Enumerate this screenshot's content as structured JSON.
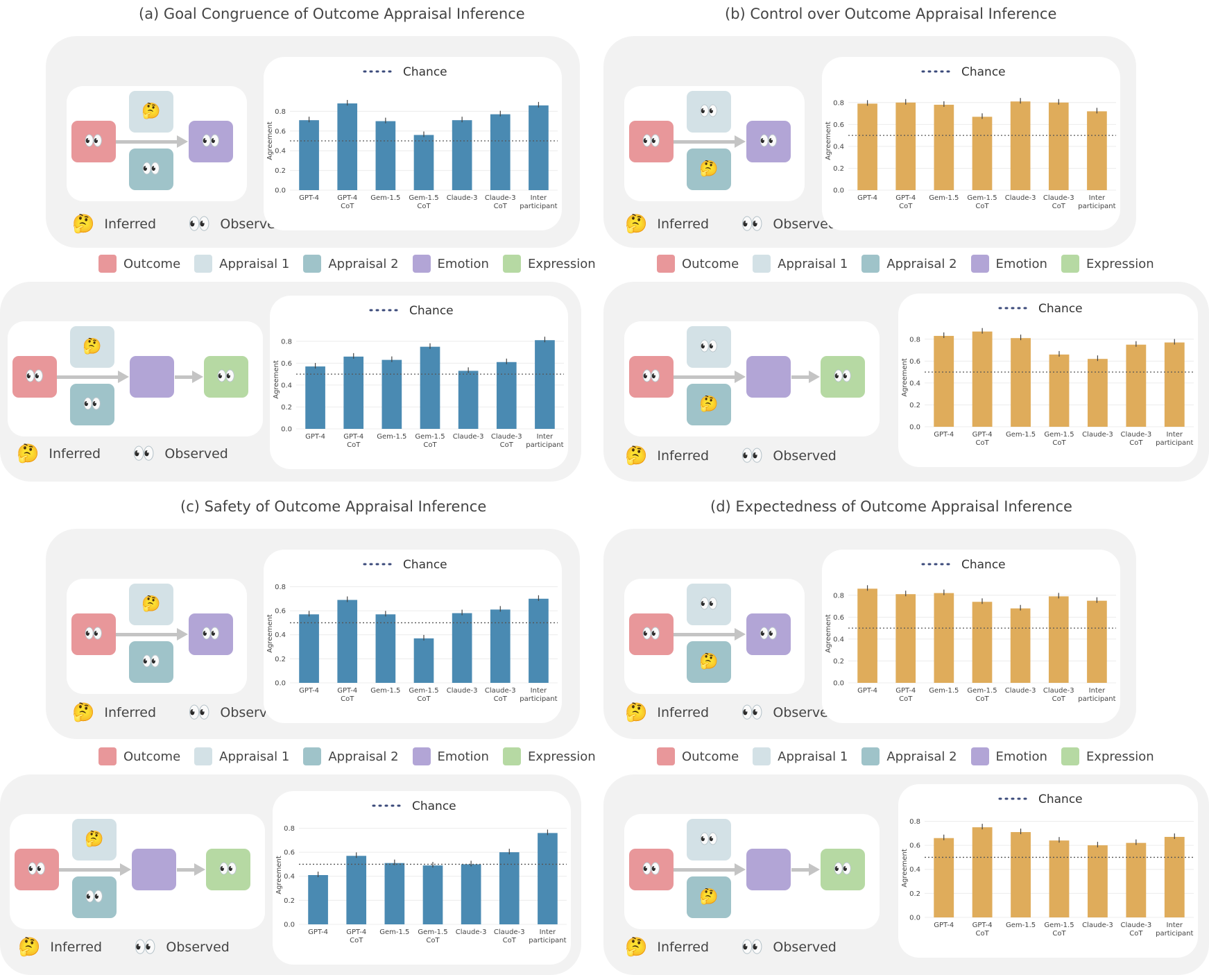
{
  "titles": {
    "a": "(a) Goal Congruence of Outcome Appraisal Inference",
    "b": "(b) Control over Outcome Appraisal Inference",
    "c": "(c) Safety of Outcome Appraisal Inference",
    "d": "(d) Expectedness of Outcome Appraisal  Inference"
  },
  "key": {
    "inferred": "Inferred",
    "observed": "Observed"
  },
  "legend": [
    {
      "label": "Outcome",
      "color": "#e8979a"
    },
    {
      "label": "Appraisal 1",
      "color": "#d3e1e6"
    },
    {
      "label": "Appraisal 2",
      "color": "#9fc3c9"
    },
    {
      "label": "Emotion",
      "color": "#b2a5d6"
    },
    {
      "label": "Expression",
      "color": "#b6d9a3"
    }
  ],
  "colors": {
    "blue": "#4a8ab2",
    "gold": "#dfac5b",
    "outcome": "#e8979a",
    "appraisal1": "#d3e1e6",
    "appraisal2": "#9fc3c9",
    "emotion": "#b2a5d6",
    "expression": "#b6d9a3"
  },
  "chart_data": [
    {
      "id": "a1",
      "type": "bar",
      "title": "",
      "legend_label": "Chance",
      "ylabel": "Agreement",
      "ylim": [
        0,
        1.0
      ],
      "yticks": [
        "0.0",
        "0.2",
        "0.4",
        "0.6",
        "0.8"
      ],
      "chance": 0.5,
      "categories": [
        [
          "GPT-4"
        ],
        [
          "GPT-4",
          "CoT"
        ],
        [
          "Gem-1.5"
        ],
        [
          "Gem-1.5",
          "CoT"
        ],
        [
          "Claude-3"
        ],
        [
          "Claude-3",
          "CoT"
        ],
        [
          "Inter",
          "participant"
        ]
      ],
      "values": [
        0.71,
        0.88,
        0.7,
        0.56,
        0.71,
        0.77,
        0.86
      ]
    },
    {
      "id": "a2",
      "type": "bar",
      "title": "",
      "legend_label": "Chance",
      "ylabel": "Agreement",
      "ylim": [
        0,
        0.9
      ],
      "yticks": [
        "0.0",
        "0.2",
        "0.4",
        "0.6",
        "0.8"
      ],
      "chance": 0.5,
      "categories": [
        [
          "GPT-4"
        ],
        [
          "GPT-4",
          "CoT"
        ],
        [
          "Gem-1.5"
        ],
        [
          "Gem-1.5",
          "CoT"
        ],
        [
          "Claude-3"
        ],
        [
          "Claude-3",
          "CoT"
        ],
        [
          "Inter",
          "participant"
        ]
      ],
      "values": [
        0.57,
        0.66,
        0.63,
        0.75,
        0.53,
        0.61,
        0.81
      ]
    },
    {
      "id": "b1",
      "type": "bar",
      "title": "",
      "legend_label": "Chance",
      "ylabel": "Agreement",
      "ylim": [
        0,
        0.9
      ],
      "yticks": [
        "0.0",
        "0.2",
        "0.4",
        "0.6",
        "0.8"
      ],
      "chance": 0.5,
      "categories": [
        [
          "GPT-4"
        ],
        [
          "GPT-4",
          "CoT"
        ],
        [
          "Gem-1.5"
        ],
        [
          "Gem-1.5",
          "CoT"
        ],
        [
          "Claude-3"
        ],
        [
          "Claude-3",
          "CoT"
        ],
        [
          "Inter",
          "participant"
        ]
      ],
      "values": [
        0.79,
        0.8,
        0.78,
        0.67,
        0.81,
        0.8,
        0.72
      ]
    },
    {
      "id": "b2",
      "type": "bar",
      "title": "",
      "legend_label": "Chance",
      "ylabel": "Agreement",
      "ylim": [
        0,
        0.9
      ],
      "yticks": [
        "0.0",
        "0.2",
        "0.4",
        "0.6",
        "0.8"
      ],
      "chance": 0.5,
      "categories": [
        [
          "GPT-4"
        ],
        [
          "GPT-4",
          "CoT"
        ],
        [
          "Gem-1.5"
        ],
        [
          "Gem-1.5",
          "CoT"
        ],
        [
          "Claude-3"
        ],
        [
          "Claude-3",
          "CoT"
        ],
        [
          "Inter",
          "participant"
        ]
      ],
      "values": [
        0.83,
        0.87,
        0.81,
        0.66,
        0.62,
        0.75,
        0.77
      ]
    },
    {
      "id": "c1",
      "type": "bar",
      "title": "",
      "legend_label": "Chance",
      "ylabel": "Agreement",
      "ylim": [
        0,
        0.82
      ],
      "yticks": [
        "0.0",
        "0.2",
        "0.4",
        "0.6",
        "0.8"
      ],
      "chance": 0.5,
      "categories": [
        [
          "GPT-4"
        ],
        [
          "GPT-4",
          "CoT"
        ],
        [
          "Gem-1.5"
        ],
        [
          "Gem-1.5",
          "CoT"
        ],
        [
          "Claude-3"
        ],
        [
          "Claude-3",
          "CoT"
        ],
        [
          "Inter",
          "participant"
        ]
      ],
      "values": [
        0.57,
        0.69,
        0.57,
        0.37,
        0.58,
        0.61,
        0.7
      ]
    },
    {
      "id": "c2",
      "type": "bar",
      "title": "",
      "legend_label": "Chance",
      "ylabel": "Agreement",
      "ylim": [
        0,
        0.82
      ],
      "yticks": [
        "0.0",
        "0.2",
        "0.4",
        "0.6",
        "0.8"
      ],
      "chance": 0.5,
      "categories": [
        [
          "GPT-4"
        ],
        [
          "GPT-4",
          "CoT"
        ],
        [
          "Gem-1.5"
        ],
        [
          "Gem-1.5",
          "CoT"
        ],
        [
          "Claude-3"
        ],
        [
          "Claude-3",
          "CoT"
        ],
        [
          "Inter",
          "participant"
        ]
      ],
      "values": [
        0.41,
        0.57,
        0.51,
        0.49,
        0.5,
        0.6,
        0.76
      ]
    },
    {
      "id": "d1",
      "type": "bar",
      "title": "",
      "legend_label": "Chance",
      "ylabel": "Agreement",
      "ylim": [
        0,
        0.9
      ],
      "yticks": [
        "0.0",
        "0.2",
        "0.4",
        "0.6",
        "0.8"
      ],
      "chance": 0.5,
      "categories": [
        [
          "GPT-4"
        ],
        [
          "GPT-4",
          "CoT"
        ],
        [
          "Gem-1.5"
        ],
        [
          "Gem-1.5",
          "CoT"
        ],
        [
          "Claude-3"
        ],
        [
          "Claude-3",
          "CoT"
        ],
        [
          "Inter",
          "participant"
        ]
      ],
      "values": [
        0.86,
        0.81,
        0.82,
        0.74,
        0.68,
        0.79,
        0.75
      ]
    },
    {
      "id": "d2",
      "type": "bar",
      "title": "",
      "legend_label": "Chance",
      "ylabel": "Agreement",
      "ylim": [
        0,
        0.82
      ],
      "yticks": [
        "0.0",
        "0.2",
        "0.4",
        "0.6",
        "0.8"
      ],
      "chance": 0.5,
      "categories": [
        [
          "GPT-4"
        ],
        [
          "GPT-4",
          "CoT"
        ],
        [
          "Gem-1.5"
        ],
        [
          "Gem-1.5",
          "CoT"
        ],
        [
          "Claude-3"
        ],
        [
          "Claude-3",
          "CoT"
        ],
        [
          "Inter",
          "participant"
        ]
      ],
      "values": [
        0.66,
        0.75,
        0.71,
        0.64,
        0.6,
        0.62,
        0.67
      ]
    }
  ]
}
